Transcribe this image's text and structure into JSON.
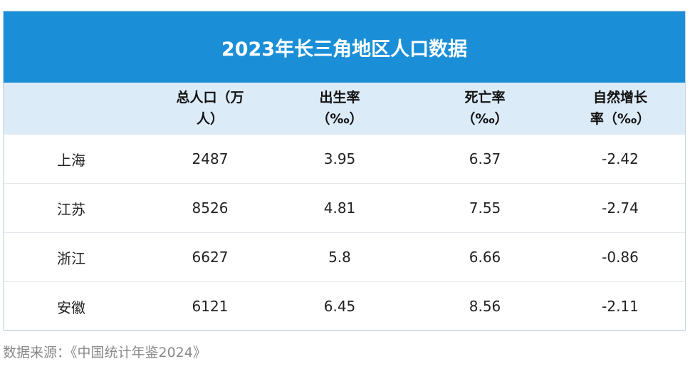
{
  "table": {
    "title": "2023年长三角地区人口数据",
    "columns": [
      "总人口（万人）",
      "出生率（‰）",
      "死亡率（‰）",
      "自然增长率（‰）"
    ],
    "rows": [
      [
        "上海",
        "2487",
        "3.95",
        "6.37",
        "-2.42"
      ],
      [
        "江苏",
        "8526",
        "4.81",
        "7.55",
        "-2.74"
      ],
      [
        "浙江",
        "6627",
        "5.8",
        "6.66",
        "-0.86"
      ],
      [
        "安徽",
        "6121",
        "6.45",
        "8.56",
        "-2.11"
      ]
    ]
  },
  "source": "数据来源：《中国统计年鉴2024》"
}
